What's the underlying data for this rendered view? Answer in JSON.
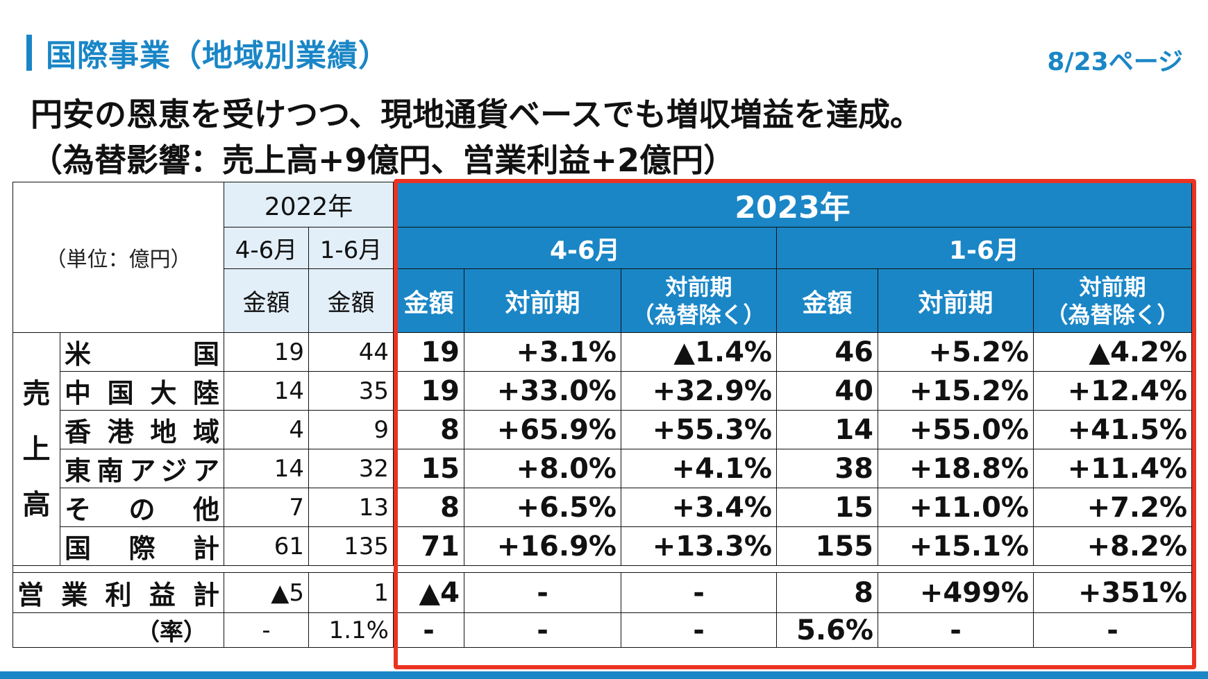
{
  "header": {
    "title": "国際事業（地域別業績）",
    "page": "8/23ページ",
    "headline_line1": "円安の恩恵を受けつつ、現地通貨ベースでも増収増益を達成。",
    "headline_line2": "（為替影響：売上高+9億円、営業利益+2億円）"
  },
  "table": {
    "unit": "（単位：億円）",
    "year_2022": "2022年",
    "year_2023": "2023年",
    "period_q2": "4-6月",
    "period_h1": "1-6月",
    "col_amount": "金額",
    "col_yoy": "対前期",
    "col_yoy_fx_1": "対前期",
    "col_yoy_fx_2": "（為替除く）",
    "sales_label": [
      "売",
      "上",
      "高"
    ],
    "rows": [
      {
        "label": "米　国",
        "q2_22": "19",
        "h1_22": "44",
        "q2_23": "19",
        "q2_yoy": "+3.1%",
        "q2_fx": "▲1.4%",
        "h1_23": "46",
        "h1_yoy": "+5.2%",
        "h1_fx": "▲4.2%"
      },
      {
        "label": "中国大陸",
        "q2_22": "14",
        "h1_22": "35",
        "q2_23": "19",
        "q2_yoy": "+33.0%",
        "q2_fx": "+32.9%",
        "h1_23": "40",
        "h1_yoy": "+15.2%",
        "h1_fx": "+12.4%"
      },
      {
        "label": "香港地域",
        "q2_22": "4",
        "h1_22": "9",
        "q2_23": "8",
        "q2_yoy": "+65.9%",
        "q2_fx": "+55.3%",
        "h1_23": "14",
        "h1_yoy": "+55.0%",
        "h1_fx": "+41.5%"
      },
      {
        "label": "東南アジア",
        "q2_22": "14",
        "h1_22": "32",
        "q2_23": "15",
        "q2_yoy": "+8.0%",
        "q2_fx": "+4.1%",
        "h1_23": "38",
        "h1_yoy": "+18.8%",
        "h1_fx": "+11.4%"
      },
      {
        "label": "そ の 他",
        "q2_22": "7",
        "h1_22": "13",
        "q2_23": "8",
        "q2_yoy": "+6.5%",
        "q2_fx": "+3.4%",
        "h1_23": "15",
        "h1_yoy": "+11.0%",
        "h1_fx": "+7.2%"
      },
      {
        "label": "国 際 計",
        "q2_22": "61",
        "h1_22": "135",
        "q2_23": "71",
        "q2_yoy": "+16.9%",
        "q2_fx": "+13.3%",
        "h1_23": "155",
        "h1_yoy": "+15.1%",
        "h1_fx": "+8.2%"
      }
    ],
    "op_profit": {
      "label": "営業利益計",
      "q2_22": "▲5",
      "h1_22": "1",
      "q2_23": "▲4",
      "q2_yoy": "-",
      "q2_fx": "-",
      "h1_23": "8",
      "h1_yoy": "+499%",
      "h1_fx": "+351%"
    },
    "margin": {
      "label": "（率）",
      "q2_22": "-",
      "h1_22": "1.1%",
      "q2_23": "-",
      "q2_yoy": "-",
      "q2_fx": "-",
      "h1_23": "5.6%",
      "h1_yoy": "-",
      "h1_fx": "-"
    }
  },
  "colors": {
    "accent": "#1a86c6",
    "header_light": "#e2eff8",
    "highlight_frame": "#ea3323"
  }
}
